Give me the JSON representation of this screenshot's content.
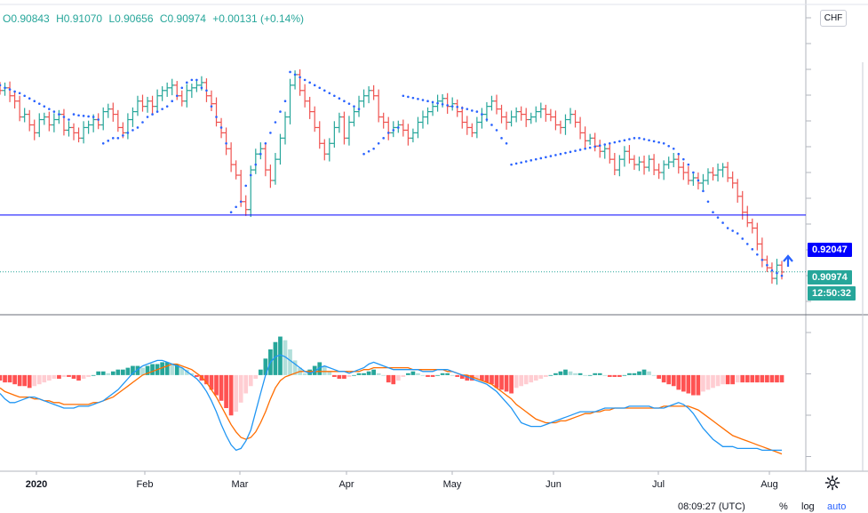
{
  "legend": {
    "open": "O0.90843",
    "high": "H0.91070",
    "low": "L0.90656",
    "close": "C0.90974",
    "change": "+0.00131 (+0.14%)"
  },
  "currency": "CHF",
  "alert_price_label": "0.92047",
  "last_price_label": "0.90974",
  "countdown_label": "12:50:32",
  "bottom_bar": {
    "clock": "08:09:27 (UTC)",
    "percent": "%",
    "log": "log",
    "auto": "auto"
  },
  "colors": {
    "up": "#26a69a",
    "down": "#ef5350",
    "psar": "#2962ff",
    "alert_line": "#0000ff",
    "macd_line": "#2196f3",
    "signal_line": "#ff6d00",
    "hist_up_strong": "#26a69a",
    "hist_up_weak": "#b2dfdb",
    "hist_down_strong": "#ff5252",
    "hist_down_weak": "#ffcdd2"
  },
  "chart_data": [
    {
      "type": "ohlc",
      "timeframe": "daily",
      "x_axis": {
        "labels": [
          {
            "label": "2020",
            "date": "2020-01-01"
          },
          {
            "label": "Feb",
            "date": "2020-02-01"
          },
          {
            "label": "Mar",
            "date": "2020-03-01"
          },
          {
            "label": "Apr",
            "date": "2020-04-01"
          },
          {
            "label": "May",
            "date": "2020-05-01"
          },
          {
            "label": "Jun",
            "date": "2020-06-01"
          },
          {
            "label": "Jul",
            "date": "2020-07-01"
          },
          {
            "label": "Aug",
            "date": "2020-08-01"
          }
        ]
      },
      "y_range": [
        0.9065,
        0.9485
      ],
      "horizontal_line": 0.92047,
      "last_close": 0.90974,
      "series_close": [
        [
          0.944,
          0.9445,
          0.943,
          0.942,
          0.939,
          0.9395,
          0.9375,
          0.936,
          0.9385,
          0.939
        ],
        [
          0.9375,
          0.9385,
          0.9395,
          0.9365,
          0.937,
          0.936,
          0.935,
          0.937,
          0.9375,
          0.9385
        ],
        [
          0.9375,
          0.94,
          0.9405,
          0.9395,
          0.937,
          0.936,
          0.9385,
          0.94,
          0.942,
          0.941
        ],
        [
          0.942,
          0.941,
          0.943,
          0.944,
          0.9445,
          0.945,
          0.943,
          0.942,
          0.944,
          0.9445
        ],
        [
          0.945,
          0.9455,
          0.943,
          0.9415,
          0.938,
          0.936,
          0.933,
          0.93,
          0.928,
          0.923
        ],
        [
          0.9215,
          0.929,
          0.932,
          0.933,
          0.929,
          0.927,
          0.931,
          0.935,
          0.939,
          0.945
        ],
        [
          0.947,
          0.944,
          0.942,
          0.94,
          0.937,
          0.934,
          0.932,
          0.934,
          0.937,
          0.939
        ],
        [
          0.935,
          0.938,
          0.94,
          0.942,
          0.943,
          0.944,
          0.943,
          0.939,
          0.938,
          0.936
        ],
        [
          0.937,
          0.9375,
          0.9365,
          0.935,
          0.936,
          0.938,
          0.939,
          0.94,
          0.941,
          0.942
        ],
        [
          0.9425,
          0.941,
          0.9415,
          0.94,
          0.938,
          0.937,
          0.936,
          0.938,
          0.9395,
          0.941
        ],
        [
          0.942,
          0.9405,
          0.939,
          0.938,
          0.939,
          0.94,
          0.9395,
          0.9385,
          0.939,
          0.94
        ],
        [
          0.9405,
          0.9395,
          0.939,
          0.9375,
          0.937,
          0.9385,
          0.9395,
          0.938,
          0.936,
          0.9345
        ],
        [
          0.935,
          0.9335,
          0.9325,
          0.933,
          0.931,
          0.929,
          0.931,
          0.9325,
          0.931,
          0.93
        ],
        [
          0.9305,
          0.9295,
          0.931,
          0.929,
          0.9285,
          0.93,
          0.9305,
          0.931,
          0.9295,
          0.9285
        ],
        [
          0.927,
          0.9275,
          0.9265,
          0.927,
          0.9285,
          0.928,
          0.929,
          0.9295,
          0.9275,
          0.9265
        ],
        [
          0.924,
          0.921,
          0.919,
          0.918,
          0.915,
          0.912,
          0.9105,
          0.9085,
          0.911,
          0.9097
        ]
      ],
      "psar": [
        [
          0.945,
          0.9445,
          0.9442,
          0.9438,
          0.9435,
          0.943,
          0.9425,
          0.942,
          0.9415,
          0.941
        ],
        [
          0.9405,
          0.94,
          0.9395,
          0.939,
          0.9385,
          0.9395,
          0.9393,
          0.9392,
          0.9391,
          0.939
        ],
        [
          0.9385,
          0.934,
          0.9345,
          0.935,
          0.935,
          0.9355,
          0.936,
          0.9365,
          0.937,
          0.938
        ],
        [
          0.939,
          0.9395,
          0.94,
          0.9405,
          0.941,
          0.942,
          0.943,
          0.9445,
          0.9455,
          0.946
        ],
        [
          0.946,
          0.9445,
          0.944,
          0.941,
          0.939,
          0.937,
          0.934,
          0.921,
          0.922,
          0.923
        ],
        [
          0.926,
          0.928,
          0.93,
          0.932,
          0.934,
          0.936,
          0.938,
          0.94,
          0.942,
          0.9475
        ],
        [
          0.947,
          0.9465,
          0.946,
          0.9455,
          0.945,
          0.9445,
          0.944,
          0.9435,
          0.943,
          0.9425
        ],
        [
          0.942,
          0.9415,
          0.941,
          0.9405,
          0.932,
          0.9325,
          0.933,
          0.934,
          0.935,
          0.936
        ],
        [
          0.9365,
          0.937,
          0.943,
          0.9428,
          0.9426,
          0.9424,
          0.9422,
          0.942,
          0.9418,
          0.9416
        ],
        [
          0.9414,
          0.9412,
          0.941,
          0.9409,
          0.9407,
          0.9405,
          0.9402,
          0.94,
          0.9395,
          0.9385
        ],
        [
          0.9375,
          0.9365,
          0.935,
          0.934,
          0.93,
          0.9302,
          0.9304,
          0.9306,
          0.9308,
          0.931
        ],
        [
          0.9312,
          0.9314,
          0.9316,
          0.9318,
          0.932,
          0.9322,
          0.9324,
          0.9326,
          0.9328,
          0.933
        ],
        [
          0.9332,
          0.9334,
          0.9336,
          0.9338,
          0.934,
          0.9342,
          0.9344,
          0.9346,
          0.9348,
          0.935
        ],
        [
          0.935,
          0.9348,
          0.9346,
          0.9344,
          0.9342,
          0.934,
          0.9335,
          0.933,
          0.932,
          0.931
        ],
        [
          0.93,
          0.9285,
          0.927,
          0.925,
          0.923,
          0.921,
          0.92,
          0.919,
          0.918,
          0.9175
        ],
        [
          0.917,
          0.916,
          0.915,
          0.914,
          0.913,
          0.912,
          0.911,
          0.91,
          0.9095,
          0.909
        ]
      ]
    },
    {
      "type": "macd",
      "y_range": [
        -0.005,
        0.003
      ],
      "histogram": [
        [
          -0.0003,
          -0.0004,
          -0.0004,
          -0.0005,
          -0.0006,
          -0.0006,
          -0.0007,
          -0.0006,
          -0.0005,
          -0.0004
        ],
        [
          -0.0003,
          -0.0002,
          -0.0002,
          -0.0001,
          -0.0001,
          -0.0002,
          -0.0003,
          -0.0002,
          -0.0001,
          0.0
        ],
        [
          0.0002,
          0.0002,
          0.0001,
          0.0002,
          0.0003,
          0.0003,
          0.0004,
          0.0005,
          0.0005,
          0.0004
        ],
        [
          0.0005,
          0.0006,
          0.0006,
          0.0007,
          0.0007,
          0.0006,
          0.0006,
          0.0004,
          0.0003,
          0.0001
        ],
        [
          -0.0001,
          -0.0003,
          -0.0005,
          -0.0008,
          -0.0011,
          -0.0014,
          -0.0018,
          -0.0022,
          -0.002,
          -0.0015
        ],
        [
          -0.001,
          -0.0006,
          -0.0002,
          0.0003,
          0.0009,
          0.0014,
          0.0018,
          0.0021,
          0.0019,
          0.0014
        ],
        [
          0.0008,
          0.0004,
          0.0001,
          0.0003,
          0.0005,
          0.0007,
          0.0005,
          0.0002,
          -0.0001,
          -0.0002
        ],
        [
          -0.0002,
          -0.0001,
          0.0,
          0.0001,
          0.0001,
          0.0002,
          0.0003,
          0.0001,
          0.0,
          -0.0004
        ],
        [
          -0.0005,
          -0.0003,
          -0.0001,
          0.0001,
          0.0002,
          0.0001,
          0.0,
          -0.0001,
          -0.0001,
          0.0
        ],
        [
          0.0001,
          0.0001,
          0.0,
          -0.0001,
          -0.0002,
          -0.0003,
          -0.0003,
          -0.0002,
          -0.0003,
          -0.0004
        ],
        [
          -0.0005,
          -0.0007,
          -0.0008,
          -0.0009,
          -0.001,
          -0.0007,
          -0.0006,
          -0.0005,
          -0.0004,
          -0.0003
        ],
        [
          -0.0002,
          -0.0001,
          0.0,
          0.0001,
          0.0002,
          0.0003,
          0.0002,
          0.0001,
          0.0001,
          0.0
        ],
        [
          0.0,
          0.0001,
          0.0001,
          0.0,
          -0.0001,
          -0.0001,
          -0.0001,
          0.0,
          0.0001,
          0.0001
        ],
        [
          0.0002,
          0.0003,
          0.0002,
          0.0,
          -0.0002,
          -0.0004,
          -0.0005,
          -0.0006,
          -0.0008,
          -0.0009
        ],
        [
          -0.001,
          -0.0011,
          -0.0011,
          -0.0009,
          -0.0008,
          -0.0007,
          -0.0006,
          -0.0005,
          -0.0005,
          -0.0005
        ],
        [
          -0.0004,
          -0.0004,
          -0.0004,
          -0.0004,
          -0.0004,
          -0.0004,
          -0.0004,
          -0.0004,
          -0.0004,
          -0.0004
        ]
      ],
      "macd": [
        [
          -0.001,
          -0.0013,
          -0.0015,
          -0.0015,
          -0.0014,
          -0.0013,
          -0.0012,
          -0.0012,
          -0.0013,
          -0.0014
        ],
        [
          -0.0015,
          -0.0016,
          -0.0017,
          -0.0018,
          -0.0018,
          -0.0018,
          -0.0017,
          -0.0017,
          -0.0017,
          -0.0016
        ],
        [
          -0.0015,
          -0.0014,
          -0.0012,
          -0.001,
          -0.0008,
          -0.0005,
          -0.0002,
          0.0001,
          0.0003,
          0.0005
        ],
        [
          0.0006,
          0.0007,
          0.0008,
          0.0008,
          0.0007,
          0.0006,
          0.0005,
          0.0004,
          0.0002,
          0.0
        ],
        [
          -0.0002,
          -0.0005,
          -0.0009,
          -0.0014,
          -0.002,
          -0.0027,
          -0.0033,
          -0.0038,
          -0.0041,
          -0.004
        ],
        [
          -0.0036,
          -0.003,
          -0.002,
          -0.001,
          0.0,
          0.0007,
          0.001,
          0.0011,
          0.001,
          0.0008
        ],
        [
          0.0006,
          0.0004,
          0.0002,
          0.0001,
          0.0002,
          0.0004,
          0.0005,
          0.0004,
          0.0003,
          0.0002
        ],
        [
          0.0002,
          0.0001,
          0.0002,
          0.0003,
          0.0004,
          0.0006,
          0.0007,
          0.0006,
          0.0005,
          0.0004
        ],
        [
          0.0003,
          0.0003,
          0.0003,
          0.0003,
          0.0003,
          0.0003,
          0.0002,
          0.0002,
          0.0002,
          0.0003
        ],
        [
          0.0003,
          0.0003,
          0.0002,
          0.0001,
          0.0,
          -0.0001,
          -0.0002,
          -0.0003,
          -0.0004,
          -0.0005
        ],
        [
          -0.0007,
          -0.0009,
          -0.0012,
          -0.0015,
          -0.0018,
          -0.0022,
          -0.0026,
          -0.0027,
          -0.0028,
          -0.0028
        ],
        [
          -0.0028,
          -0.0027,
          -0.0026,
          -0.0025,
          -0.0024,
          -0.0023,
          -0.0022,
          -0.0021,
          -0.002,
          -0.002
        ],
        [
          -0.002,
          -0.002,
          -0.0019,
          -0.0018,
          -0.0018,
          -0.0018,
          -0.0018,
          -0.0018,
          -0.0017,
          -0.0017
        ],
        [
          -0.0017,
          -0.0017,
          -0.0017,
          -0.0018,
          -0.0018,
          -0.0018,
          -0.0017,
          -0.0016,
          -0.0015,
          -0.0016
        ],
        [
          -0.0018,
          -0.0021,
          -0.0025,
          -0.0029,
          -0.0032,
          -0.0035,
          -0.0037,
          -0.0039,
          -0.0039,
          -0.0039
        ],
        [
          -0.004,
          -0.004,
          -0.004,
          -0.004,
          -0.004,
          -0.0041,
          -0.0041,
          -0.0041,
          -0.0041,
          -0.0041
        ]
      ],
      "signal": [
        [
          -0.0007,
          -0.0009,
          -0.001,
          -0.0011,
          -0.0012,
          -0.0012,
          -0.0012,
          -0.0013,
          -0.0013,
          -0.0014
        ],
        [
          -0.0014,
          -0.0015,
          -0.0015,
          -0.0016,
          -0.0016,
          -0.0016,
          -0.0016,
          -0.0016,
          -0.0016,
          -0.0015
        ],
        [
          -0.0015,
          -0.0014,
          -0.0013,
          -0.0012,
          -0.001,
          -0.0008,
          -0.0006,
          -0.0004,
          -0.0002,
          0.0
        ],
        [
          0.0001,
          0.0002,
          0.0003,
          0.0004,
          0.0005,
          0.0006,
          0.0006,
          0.0005,
          0.0004,
          0.0003
        ],
        [
          0.0001,
          -0.0001,
          -0.0004,
          -0.0008,
          -0.0012,
          -0.0017,
          -0.0022,
          -0.0027,
          -0.0031,
          -0.0034
        ],
        [
          -0.0035,
          -0.0034,
          -0.0031,
          -0.0026,
          -0.002,
          -0.0013,
          -0.0007,
          -0.0003,
          -0.0001,
          0.0
        ],
        [
          0.0001,
          0.0002,
          0.0002,
          0.0002,
          0.0002,
          0.0002,
          0.0002,
          0.0002,
          0.0002,
          0.0002
        ],
        [
          0.0002,
          0.0002,
          0.0002,
          0.0002,
          0.0003,
          0.0003,
          0.0004,
          0.0004,
          0.0004,
          0.0004
        ],
        [
          0.0004,
          0.0004,
          0.0004,
          0.0004,
          0.0003,
          0.0003,
          0.0003,
          0.0003,
          0.0003,
          0.0003
        ],
        [
          0.0003,
          0.0002,
          0.0002,
          0.0001,
          0.0,
          0.0,
          -0.0001,
          -0.0002,
          -0.0003,
          -0.0004
        ],
        [
          -0.0005,
          -0.0007,
          -0.0009,
          -0.0011,
          -0.0013,
          -0.0016,
          -0.0018,
          -0.002,
          -0.0022,
          -0.0024
        ],
        [
          -0.0025,
          -0.0026,
          -0.0026,
          -0.0026,
          -0.0025,
          -0.0025,
          -0.0024,
          -0.0023,
          -0.0022,
          -0.0021
        ],
        [
          -0.0021,
          -0.002,
          -0.002,
          -0.0019,
          -0.0019,
          -0.0018,
          -0.0018,
          -0.0018,
          -0.0018,
          -0.0018
        ],
        [
          -0.0018,
          -0.0018,
          -0.0018,
          -0.0018,
          -0.0018,
          -0.0017,
          -0.0017,
          -0.0017,
          -0.0017,
          -0.0017
        ],
        [
          -0.0017,
          -0.0018,
          -0.0019,
          -0.0021,
          -0.0023,
          -0.0025,
          -0.0027,
          -0.0029,
          -0.0031,
          -0.0033
        ],
        [
          -0.0034,
          -0.0035,
          -0.0036,
          -0.0037,
          -0.0038,
          -0.0039,
          -0.004,
          -0.0041,
          -0.0042,
          -0.0043
        ]
      ]
    }
  ]
}
